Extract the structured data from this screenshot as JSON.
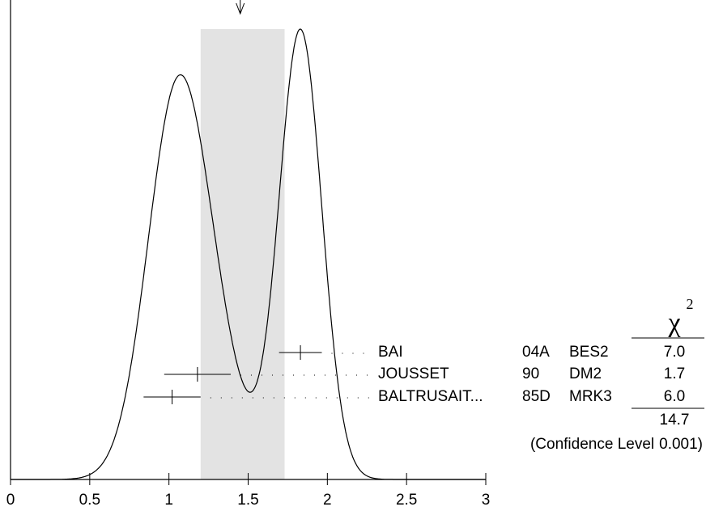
{
  "chart_data": {
    "type": "ideogram",
    "xlim": [
      0,
      3
    ],
    "xticks": [
      0,
      0.5,
      1,
      1.5,
      2,
      2.5,
      3
    ],
    "band": [
      1.2,
      1.73
    ],
    "arrow_x": 1.45,
    "measurements": [
      {
        "name": "BAI",
        "code": "04A",
        "technique": "BES2",
        "value": 1.83,
        "error": 0.135,
        "chi2": 7.0,
        "chi2_label": "7.0"
      },
      {
        "name": "JOUSSET",
        "code": "90",
        "technique": "DM2",
        "value": 1.18,
        "error": 0.21,
        "chi2": 1.7,
        "chi2_label": "1.7"
      },
      {
        "name": "BALTRUSAIT...",
        "code": "85D",
        "technique": "MRK3",
        "value": 1.02,
        "error": 0.18,
        "chi2": 6.0,
        "chi2_label": "6.0"
      }
    ],
    "chi2_symbol": "χ",
    "chi2_exponent": "2",
    "chi2_total": 14.7,
    "confidence_label": "(Confidence Level",
    "confidence_level": 0.001,
    "confidence_close": ")"
  }
}
